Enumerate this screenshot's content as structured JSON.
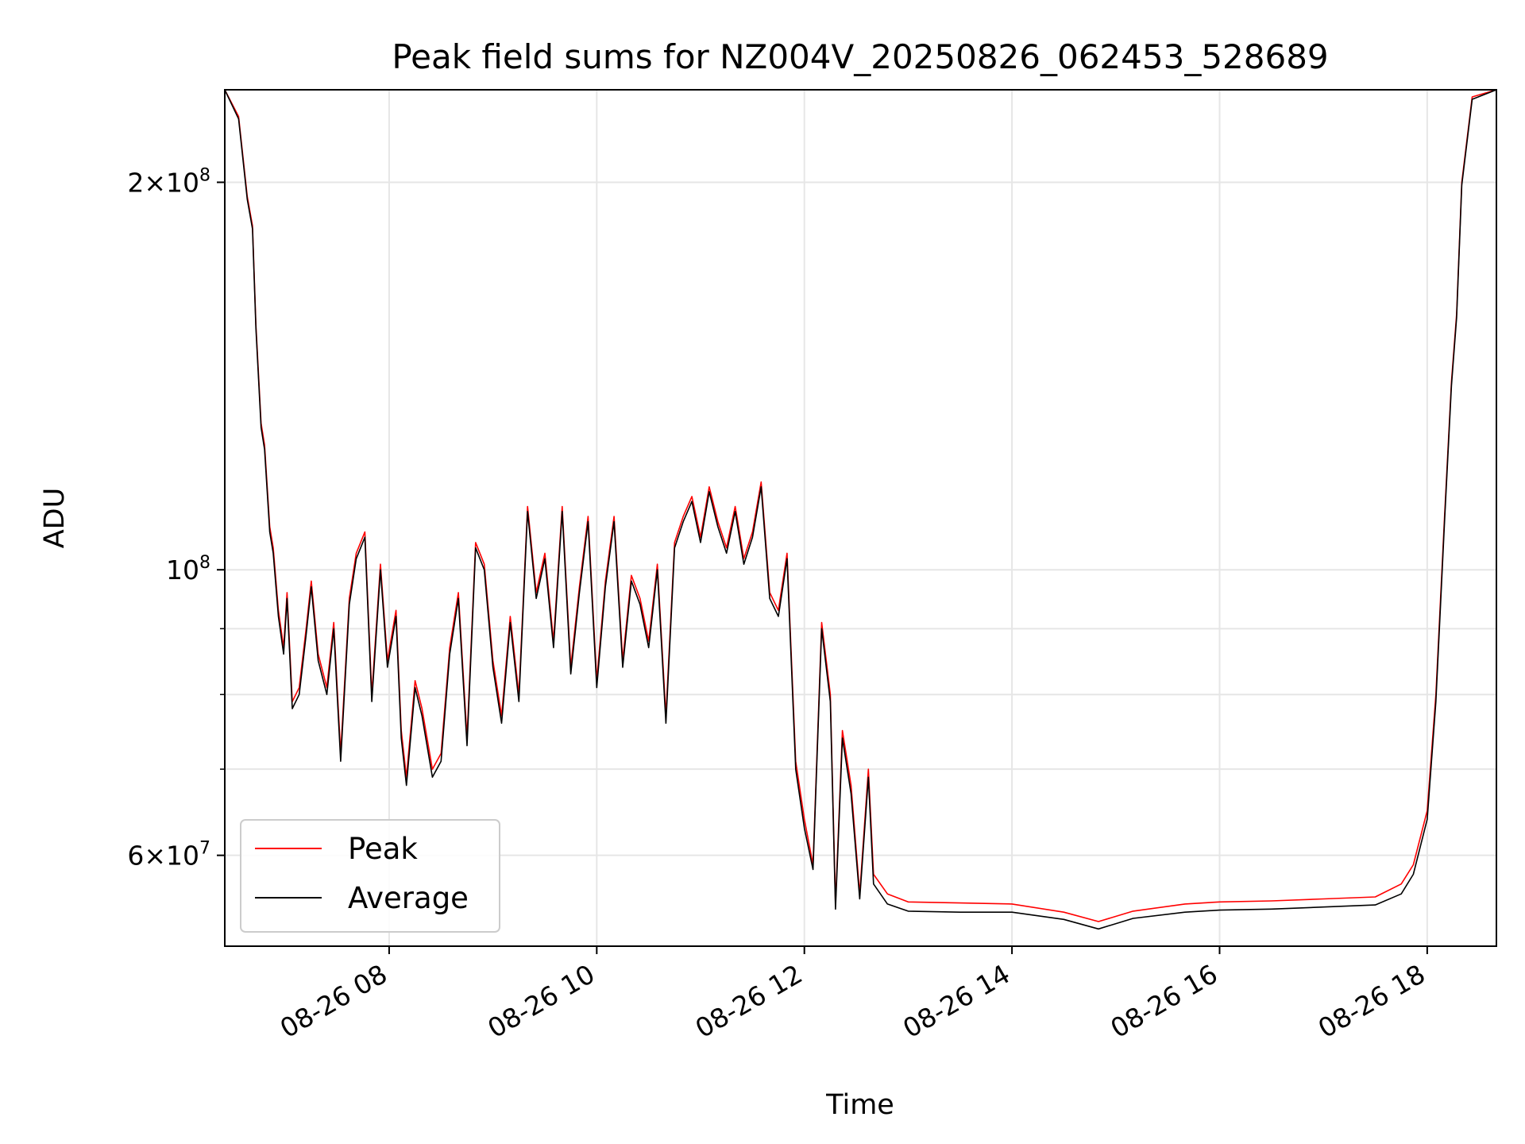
{
  "chart_data": {
    "type": "line",
    "title": "Peak field sums for NZ004V_20250826_062453_528689",
    "xlabel": "Time",
    "ylabel": "ADU",
    "y_scale": "log",
    "grid": true,
    "legend_position": "lower-left",
    "x_range": [
      "2025-08-26 06:25",
      "2025-08-26 18:40"
    ],
    "ylim": [
      51000000,
      236000000
    ],
    "x_ticks": [
      {
        "time": "2025-08-26 08:00",
        "label": "08-26 08"
      },
      {
        "time": "2025-08-26 10:00",
        "label": "08-26 10"
      },
      {
        "time": "2025-08-26 12:00",
        "label": "08-26 12"
      },
      {
        "time": "2025-08-26 14:00",
        "label": "08-26 14"
      },
      {
        "time": "2025-08-26 16:00",
        "label": "08-26 16"
      },
      {
        "time": "2025-08-26 18:00",
        "label": "08-26 18"
      }
    ],
    "y_major_ticks": [
      {
        "value": 60000000,
        "mant": "6",
        "exp": "7"
      },
      {
        "value": 100000000,
        "mant": "",
        "exp": "8"
      },
      {
        "value": 200000000,
        "mant": "2",
        "exp": "8"
      }
    ],
    "y_minor_ticks": [
      70000000,
      80000000,
      90000000
    ],
    "series": [
      {
        "name": "Peak",
        "color": "#ff0000",
        "points": [
          [
            "2025-08-26 06:25",
            236000000
          ],
          [
            "2025-08-26 06:33",
            225000000
          ],
          [
            "2025-08-26 06:38",
            195000000
          ],
          [
            "2025-08-26 06:41",
            185000000
          ],
          [
            "2025-08-26 06:43",
            155000000
          ],
          [
            "2025-08-26 06:46",
            130000000
          ],
          [
            "2025-08-26 06:48",
            125000000
          ],
          [
            "2025-08-26 06:51",
            108000000
          ],
          [
            "2025-08-26 06:53",
            104000000
          ],
          [
            "2025-08-26 06:56",
            93000000
          ],
          [
            "2025-08-26 06:59",
            87000000
          ],
          [
            "2025-08-26 07:01",
            96000000
          ],
          [
            "2025-08-26 07:04",
            79000000
          ],
          [
            "2025-08-26 07:08",
            81000000
          ],
          [
            "2025-08-26 07:12",
            90000000
          ],
          [
            "2025-08-26 07:15",
            98000000
          ],
          [
            "2025-08-26 07:19",
            86000000
          ],
          [
            "2025-08-26 07:24",
            81000000
          ],
          [
            "2025-08-26 07:28",
            91000000
          ],
          [
            "2025-08-26 07:32",
            72000000
          ],
          [
            "2025-08-26 07:37",
            95000000
          ],
          [
            "2025-08-26 07:41",
            103000000
          ],
          [
            "2025-08-26 07:46",
            107000000
          ],
          [
            "2025-08-26 07:50",
            80000000
          ],
          [
            "2025-08-26 07:55",
            101000000
          ],
          [
            "2025-08-26 07:59",
            85000000
          ],
          [
            "2025-08-26 08:04",
            93000000
          ],
          [
            "2025-08-26 08:07",
            75000000
          ],
          [
            "2025-08-26 08:10",
            69000000
          ],
          [
            "2025-08-26 08:15",
            82000000
          ],
          [
            "2025-08-26 08:19",
            78000000
          ],
          [
            "2025-08-26 08:25",
            70000000
          ],
          [
            "2025-08-26 08:30",
            72000000
          ],
          [
            "2025-08-26 08:35",
            87000000
          ],
          [
            "2025-08-26 08:40",
            96000000
          ],
          [
            "2025-08-26 08:45",
            74000000
          ],
          [
            "2025-08-26 08:50",
            105000000
          ],
          [
            "2025-08-26 08:55",
            101000000
          ],
          [
            "2025-08-26 09:00",
            85000000
          ],
          [
            "2025-08-26 09:05",
            77000000
          ],
          [
            "2025-08-26 09:10",
            92000000
          ],
          [
            "2025-08-26 09:15",
            80000000
          ],
          [
            "2025-08-26 09:20",
            112000000
          ],
          [
            "2025-08-26 09:25",
            96000000
          ],
          [
            "2025-08-26 09:30",
            103000000
          ],
          [
            "2025-08-26 09:35",
            88000000
          ],
          [
            "2025-08-26 09:40",
            112000000
          ],
          [
            "2025-08-26 09:45",
            84000000
          ],
          [
            "2025-08-26 09:50",
            97000000
          ],
          [
            "2025-08-26 09:55",
            110000000
          ],
          [
            "2025-08-26 10:00",
            82000000
          ],
          [
            "2025-08-26 10:05",
            98000000
          ],
          [
            "2025-08-26 10:10",
            110000000
          ],
          [
            "2025-08-26 10:15",
            85000000
          ],
          [
            "2025-08-26 10:20",
            99000000
          ],
          [
            "2025-08-26 10:25",
            95000000
          ],
          [
            "2025-08-26 10:30",
            88000000
          ],
          [
            "2025-08-26 10:35",
            101000000
          ],
          [
            "2025-08-26 10:40",
            77000000
          ],
          [
            "2025-08-26 10:45",
            105000000
          ],
          [
            "2025-08-26 10:50",
            110000000
          ],
          [
            "2025-08-26 10:55",
            114000000
          ],
          [
            "2025-08-26 11:00",
            106000000
          ],
          [
            "2025-08-26 11:05",
            116000000
          ],
          [
            "2025-08-26 11:10",
            109000000
          ],
          [
            "2025-08-26 11:15",
            104000000
          ],
          [
            "2025-08-26 11:20",
            112000000
          ],
          [
            "2025-08-26 11:25",
            102000000
          ],
          [
            "2025-08-26 11:30",
            107000000
          ],
          [
            "2025-08-26 11:35",
            117000000
          ],
          [
            "2025-08-26 11:40",
            96000000
          ],
          [
            "2025-08-26 11:45",
            93000000
          ],
          [
            "2025-08-26 11:50",
            103000000
          ],
          [
            "2025-08-26 11:55",
            71000000
          ],
          [
            "2025-08-26 12:00",
            64000000
          ],
          [
            "2025-08-26 12:05",
            59000000
          ],
          [
            "2025-08-26 12:10",
            91000000
          ],
          [
            "2025-08-26 12:15",
            80000000
          ],
          [
            "2025-08-26 12:18",
            55000000
          ],
          [
            "2025-08-26 12:22",
            75000000
          ],
          [
            "2025-08-26 12:27",
            68000000
          ],
          [
            "2025-08-26 12:32",
            56000000
          ],
          [
            "2025-08-26 12:37",
            70000000
          ],
          [
            "2025-08-26 12:40",
            58000000
          ],
          [
            "2025-08-26 12:48",
            56000000
          ],
          [
            "2025-08-26 13:00",
            55200000
          ],
          [
            "2025-08-26 13:30",
            55100000
          ],
          [
            "2025-08-26 14:00",
            55000000
          ],
          [
            "2025-08-26 14:30",
            54200000
          ],
          [
            "2025-08-26 14:50",
            53300000
          ],
          [
            "2025-08-26 15:10",
            54300000
          ],
          [
            "2025-08-26 15:40",
            55000000
          ],
          [
            "2025-08-26 16:00",
            55200000
          ],
          [
            "2025-08-26 16:30",
            55300000
          ],
          [
            "2025-08-26 17:00",
            55500000
          ],
          [
            "2025-08-26 17:30",
            55700000
          ],
          [
            "2025-08-26 17:45",
            57000000
          ],
          [
            "2025-08-26 17:52",
            59000000
          ],
          [
            "2025-08-26 18:00",
            65000000
          ],
          [
            "2025-08-26 18:05",
            80000000
          ],
          [
            "2025-08-26 18:10",
            110000000
          ],
          [
            "2025-08-26 18:14",
            140000000
          ],
          [
            "2025-08-26 18:17",
            158000000
          ],
          [
            "2025-08-26 18:20",
            200000000
          ],
          [
            "2025-08-26 18:26",
            233000000
          ],
          [
            "2025-08-26 18:40",
            236000000
          ]
        ]
      },
      {
        "name": "Average",
        "color": "#000000",
        "points": [
          [
            "2025-08-26 06:25",
            236000000
          ],
          [
            "2025-08-26 06:33",
            224000000
          ],
          [
            "2025-08-26 06:38",
            194000000
          ],
          [
            "2025-08-26 06:41",
            184000000
          ],
          [
            "2025-08-26 06:43",
            154000000
          ],
          [
            "2025-08-26 06:46",
            129000000
          ],
          [
            "2025-08-26 06:48",
            124000000
          ],
          [
            "2025-08-26 06:51",
            107000000
          ],
          [
            "2025-08-26 06:53",
            103000000
          ],
          [
            "2025-08-26 06:56",
            92000000
          ],
          [
            "2025-08-26 06:59",
            86000000
          ],
          [
            "2025-08-26 07:01",
            95000000
          ],
          [
            "2025-08-26 07:04",
            78000000
          ],
          [
            "2025-08-26 07:08",
            80000000
          ],
          [
            "2025-08-26 07:12",
            89000000
          ],
          [
            "2025-08-26 07:15",
            97000000
          ],
          [
            "2025-08-26 07:19",
            85000000
          ],
          [
            "2025-08-26 07:24",
            80000000
          ],
          [
            "2025-08-26 07:28",
            90000000
          ],
          [
            "2025-08-26 07:32",
            71000000
          ],
          [
            "2025-08-26 07:37",
            94000000
          ],
          [
            "2025-08-26 07:41",
            102000000
          ],
          [
            "2025-08-26 07:46",
            106000000
          ],
          [
            "2025-08-26 07:50",
            79000000
          ],
          [
            "2025-08-26 07:55",
            100000000
          ],
          [
            "2025-08-26 07:59",
            84000000
          ],
          [
            "2025-08-26 08:04",
            92000000
          ],
          [
            "2025-08-26 08:07",
            74000000
          ],
          [
            "2025-08-26 08:10",
            68000000
          ],
          [
            "2025-08-26 08:15",
            81000000
          ],
          [
            "2025-08-26 08:19",
            77000000
          ],
          [
            "2025-08-26 08:25",
            69000000
          ],
          [
            "2025-08-26 08:30",
            71000000
          ],
          [
            "2025-08-26 08:35",
            86000000
          ],
          [
            "2025-08-26 08:40",
            95000000
          ],
          [
            "2025-08-26 08:45",
            73000000
          ],
          [
            "2025-08-26 08:50",
            104000000
          ],
          [
            "2025-08-26 08:55",
            100000000
          ],
          [
            "2025-08-26 09:00",
            84000000
          ],
          [
            "2025-08-26 09:05",
            76000000
          ],
          [
            "2025-08-26 09:10",
            91000000
          ],
          [
            "2025-08-26 09:15",
            79000000
          ],
          [
            "2025-08-26 09:20",
            111000000
          ],
          [
            "2025-08-26 09:25",
            95000000
          ],
          [
            "2025-08-26 09:30",
            102000000
          ],
          [
            "2025-08-26 09:35",
            87000000
          ],
          [
            "2025-08-26 09:40",
            111000000
          ],
          [
            "2025-08-26 09:45",
            83000000
          ],
          [
            "2025-08-26 09:50",
            96000000
          ],
          [
            "2025-08-26 09:55",
            109000000
          ],
          [
            "2025-08-26 10:00",
            81000000
          ],
          [
            "2025-08-26 10:05",
            97000000
          ],
          [
            "2025-08-26 10:10",
            109000000
          ],
          [
            "2025-08-26 10:15",
            84000000
          ],
          [
            "2025-08-26 10:20",
            98000000
          ],
          [
            "2025-08-26 10:25",
            94000000
          ],
          [
            "2025-08-26 10:30",
            87000000
          ],
          [
            "2025-08-26 10:35",
            100000000
          ],
          [
            "2025-08-26 10:40",
            76000000
          ],
          [
            "2025-08-26 10:45",
            104000000
          ],
          [
            "2025-08-26 10:50",
            109000000
          ],
          [
            "2025-08-26 10:55",
            113000000
          ],
          [
            "2025-08-26 11:00",
            105000000
          ],
          [
            "2025-08-26 11:05",
            115000000
          ],
          [
            "2025-08-26 11:10",
            108000000
          ],
          [
            "2025-08-26 11:15",
            103000000
          ],
          [
            "2025-08-26 11:20",
            111000000
          ],
          [
            "2025-08-26 11:25",
            101000000
          ],
          [
            "2025-08-26 11:30",
            106000000
          ],
          [
            "2025-08-26 11:35",
            116000000
          ],
          [
            "2025-08-26 11:40",
            95000000
          ],
          [
            "2025-08-26 11:45",
            92000000
          ],
          [
            "2025-08-26 11:50",
            102000000
          ],
          [
            "2025-08-26 11:55",
            70000000
          ],
          [
            "2025-08-26 12:00",
            63000000
          ],
          [
            "2025-08-26 12:05",
            58500000
          ],
          [
            "2025-08-26 12:10",
            90000000
          ],
          [
            "2025-08-26 12:15",
            79000000
          ],
          [
            "2025-08-26 12:18",
            54500000
          ],
          [
            "2025-08-26 12:22",
            74000000
          ],
          [
            "2025-08-26 12:27",
            67000000
          ],
          [
            "2025-08-26 12:32",
            55500000
          ],
          [
            "2025-08-26 12:37",
            69000000
          ],
          [
            "2025-08-26 12:40",
            57000000
          ],
          [
            "2025-08-26 12:48",
            55000000
          ],
          [
            "2025-08-26 13:00",
            54300000
          ],
          [
            "2025-08-26 13:30",
            54200000
          ],
          [
            "2025-08-26 14:00",
            54200000
          ],
          [
            "2025-08-26 14:30",
            53500000
          ],
          [
            "2025-08-26 14:50",
            52600000
          ],
          [
            "2025-08-26 15:10",
            53600000
          ],
          [
            "2025-08-26 15:40",
            54200000
          ],
          [
            "2025-08-26 16:00",
            54400000
          ],
          [
            "2025-08-26 16:30",
            54500000
          ],
          [
            "2025-08-26 17:00",
            54700000
          ],
          [
            "2025-08-26 17:30",
            54900000
          ],
          [
            "2025-08-26 17:45",
            56000000
          ],
          [
            "2025-08-26 17:52",
            58000000
          ],
          [
            "2025-08-26 18:00",
            64000000
          ],
          [
            "2025-08-26 18:05",
            79000000
          ],
          [
            "2025-08-26 18:10",
            109000000
          ],
          [
            "2025-08-26 18:14",
            139000000
          ],
          [
            "2025-08-26 18:17",
            157000000
          ],
          [
            "2025-08-26 18:20",
            199000000
          ],
          [
            "2025-08-26 18:26",
            232000000
          ],
          [
            "2025-08-26 18:40",
            236000000
          ]
        ]
      }
    ]
  }
}
